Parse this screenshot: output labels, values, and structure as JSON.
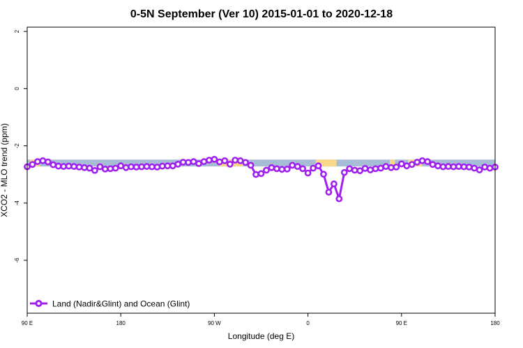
{
  "chart_data": {
    "type": "line",
    "title": "0-5N September (Ver 10)   2015-01-01 to 2020-12-18",
    "xlabel": "Longitude (deg E)",
    "ylabel": "XCO2 - MLO trend (ppm)",
    "xlim": [
      90,
      450
    ],
    "ylim": [
      -7.85,
      2.15
    ],
    "x_ticks": [
      {
        "value": 90,
        "label": "90 E"
      },
      {
        "value": 162,
        "label": "180"
      },
      {
        "value": 234,
        "label": "90 W"
      },
      {
        "value": 306,
        "label": "0"
      },
      {
        "value": 378,
        "label": "90 E"
      },
      {
        "value": 450,
        "label": "180"
      }
    ],
    "y_ticks": [
      {
        "value": 2,
        "label": "2"
      },
      {
        "value": 0,
        "label": "0"
      },
      {
        "value": -2,
        "label": "-2"
      },
      {
        "value": -4,
        "label": "-4"
      },
      {
        "value": -6,
        "label": "-6"
      }
    ],
    "grid": false,
    "legend": {
      "position": "bottom-left",
      "entries": [
        "Land (Nadir&Glint) and Ocean (Glint)"
      ]
    },
    "background_band": {
      "ymin": -2.72,
      "ymax": -2.48,
      "ocean_color": "#a7bdd6",
      "land_color": "#f8d98a",
      "land_ranges": [
        [
          92,
          100
        ],
        [
          238,
          256
        ],
        [
          312,
          328
        ],
        [
          369,
          373
        ],
        [
          383,
          394
        ]
      ]
    },
    "series": [
      {
        "name": "Land (Nadir&Glint) and Ocean (Glint)",
        "color": "#a020f0",
        "x": [
          90,
          94,
          98,
          102,
          106,
          110,
          114,
          118,
          122,
          126,
          130,
          134,
          138,
          142,
          146,
          150,
          154,
          158,
          162,
          166,
          170,
          174,
          178,
          182,
          186,
          190,
          194,
          198,
          202,
          206,
          210,
          214,
          218,
          222,
          226,
          230,
          234,
          238,
          242,
          246,
          250,
          254,
          258,
          262,
          266,
          270,
          274,
          278,
          282,
          286,
          290,
          294,
          298,
          302,
          306,
          310,
          314,
          318,
          322,
          326,
          330,
          334,
          338,
          342,
          346,
          350,
          354,
          358,
          362,
          366,
          370,
          374,
          378,
          382,
          386,
          390,
          394,
          398,
          402,
          406,
          410,
          414,
          418,
          422,
          426,
          430,
          434,
          438,
          442,
          446,
          450
        ],
        "y": [
          -2.73,
          -2.65,
          -2.55,
          -2.52,
          -2.56,
          -2.66,
          -2.71,
          -2.72,
          -2.71,
          -2.72,
          -2.74,
          -2.76,
          -2.78,
          -2.86,
          -2.73,
          -2.81,
          -2.8,
          -2.78,
          -2.7,
          -2.76,
          -2.73,
          -2.74,
          -2.73,
          -2.72,
          -2.73,
          -2.74,
          -2.71,
          -2.7,
          -2.7,
          -2.64,
          -2.57,
          -2.58,
          -2.55,
          -2.62,
          -2.55,
          -2.5,
          -2.47,
          -2.56,
          -2.52,
          -2.64,
          -2.5,
          -2.52,
          -2.58,
          -2.68,
          -3.0,
          -2.97,
          -2.85,
          -2.76,
          -2.8,
          -2.82,
          -2.81,
          -2.68,
          -2.72,
          -2.8,
          -2.95,
          -2.78,
          -2.7,
          -2.99,
          -3.62,
          -3.33,
          -3.85,
          -2.93,
          -2.8,
          -2.85,
          -2.87,
          -2.79,
          -2.84,
          -2.8,
          -2.78,
          -2.72,
          -2.76,
          -2.74,
          -2.63,
          -2.7,
          -2.65,
          -2.57,
          -2.52,
          -2.55,
          -2.65,
          -2.7,
          -2.73,
          -2.72,
          -2.73,
          -2.72,
          -2.73,
          -2.74,
          -2.78,
          -2.84,
          -2.74,
          -2.78,
          -2.74
        ]
      }
    ]
  }
}
